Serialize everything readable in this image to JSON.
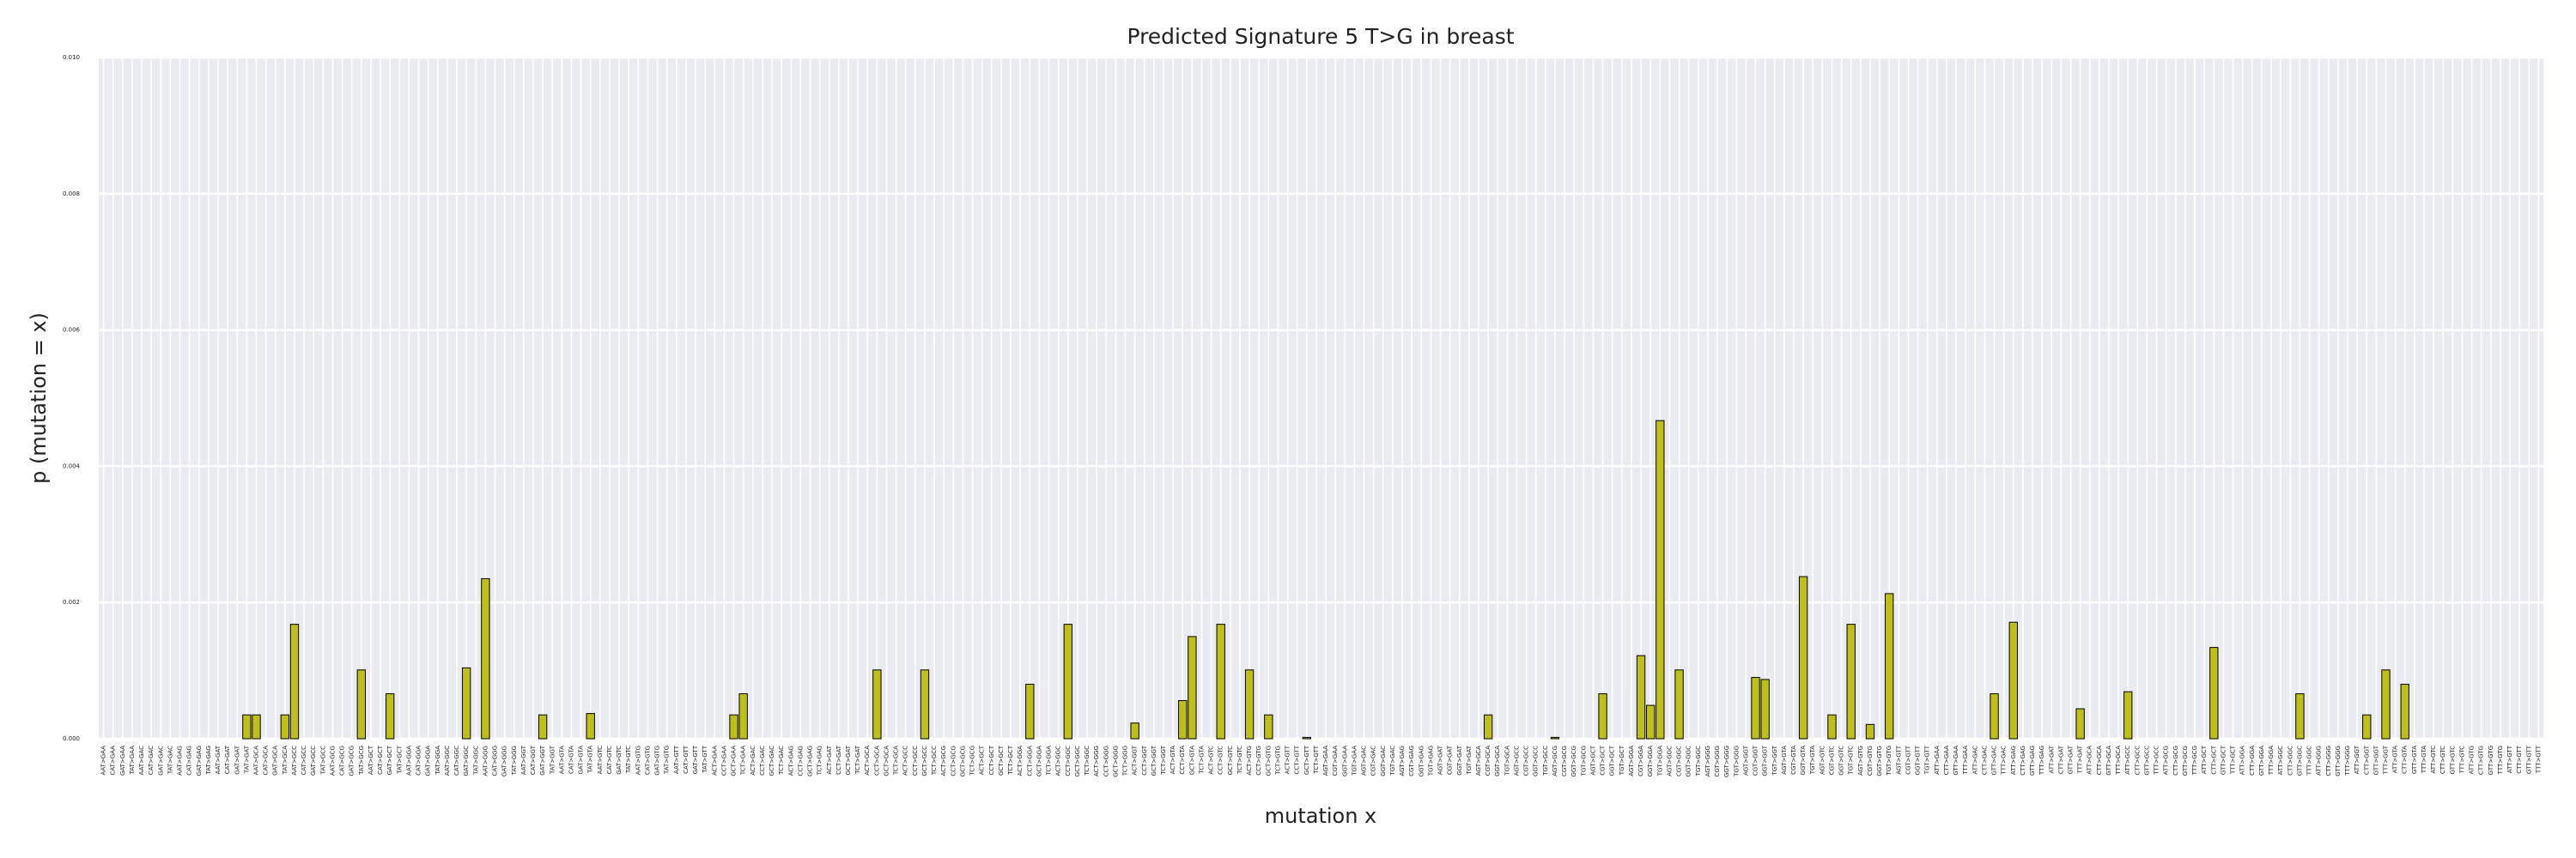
{
  "chart_data": {
    "type": "bar",
    "title": "Predicted Signature 5 T>G in breast",
    "xlabel": "mutation x",
    "ylabel": "p (mutation = x)",
    "color": "#bfbf1a",
    "edgecolor": "#000000",
    "grid": true,
    "ylim": [
      0,
      0.01
    ],
    "yticks": [
      {
        "value": 0,
        "label": "0.000"
      },
      {
        "value": 0.002,
        "label": "0.002"
      },
      {
        "value": 0.004,
        "label": "0.004"
      },
      {
        "value": 0.006,
        "label": "0.006"
      },
      {
        "value": 0.008,
        "label": "0.008"
      },
      {
        "value": 0.01,
        "label": "0.010"
      }
    ],
    "categories": [
      "AAT>GAA",
      "CAT>GAA",
      "GAT>GAA",
      "TAT>GAA",
      "AAT>GAC",
      "CAT>GAC",
      "GAT>GAC",
      "TAT>GAC",
      "AAT>GAG",
      "CAT>GAG",
      "GAT>GAG",
      "TAT>GAG",
      "AAT>GAT",
      "CAT>GAT",
      "GAT>GAT",
      "TAT>GAT",
      "AAT>GCA",
      "CAT>GCA",
      "GAT>GCA",
      "TAT>GCA",
      "AAT>GCC",
      "CAT>GCC",
      "GAT>GCC",
      "TAT>GCC",
      "AAT>GCG",
      "CAT>GCG",
      "GAT>GCG",
      "TAT>GCG",
      "AAT>GCT",
      "CAT>GCT",
      "GAT>GCT",
      "TAT>GCT",
      "AAT>GGA",
      "CAT>GGA",
      "GAT>GGA",
      "TAT>GGA",
      "AAT>GGC",
      "CAT>GGC",
      "GAT>GGC",
      "TAT>GGC",
      "AAT>GGG",
      "CAT>GGG",
      "GAT>GGG",
      "TAT>GGG",
      "AAT>GGT",
      "CAT>GGT",
      "GAT>GGT",
      "TAT>GGT",
      "AAT>GTA",
      "CAT>GTA",
      "GAT>GTA",
      "TAT>GTA",
      "AAT>GTC",
      "CAT>GTC",
      "GAT>GTC",
      "TAT>GTC",
      "AAT>GTG",
      "CAT>GTG",
      "GAT>GTG",
      "TAT>GTG",
      "AAT>GTT",
      "CAT>GTT",
      "GAT>GTT",
      "TAT>GTT",
      "ACT>GAA",
      "CCT>GAA",
      "GCT>GAA",
      "TCT>GAA",
      "ACT>GAC",
      "CCT>GAC",
      "GCT>GAC",
      "TCT>GAC",
      "ACT>GAG",
      "CCT>GAG",
      "GCT>GAG",
      "TCT>GAG",
      "ACT>GAT",
      "CCT>GAT",
      "GCT>GAT",
      "TCT>GAT",
      "ACT>GCA",
      "CCT>GCA",
      "GCT>GCA",
      "TCT>GCA",
      "ACT>GCC",
      "CCT>GCC",
      "GCT>GCC",
      "TCT>GCC",
      "ACT>GCG",
      "CCT>GCG",
      "GCT>GCG",
      "TCT>GCG",
      "ACT>GCT",
      "CCT>GCT",
      "GCT>GCT",
      "TCT>GCT",
      "ACT>GGA",
      "CCT>GGA",
      "GCT>GGA",
      "TCT>GGA",
      "ACT>GGC",
      "CCT>GGC",
      "GCT>GGC",
      "TCT>GGC",
      "ACT>GGG",
      "CCT>GGG",
      "GCT>GGG",
      "TCT>GGG",
      "ACT>GGT",
      "CCT>GGT",
      "GCT>GGT",
      "TCT>GGT",
      "ACT>GTA",
      "CCT>GTA",
      "GCT>GTA",
      "TCT>GTA",
      "ACT>GTC",
      "CCT>GTC",
      "GCT>GTC",
      "TCT>GTC",
      "ACT>GTG",
      "CCT>GTG",
      "GCT>GTG",
      "TCT>GTG",
      "ACT>GTT",
      "CCT>GTT",
      "GCT>GTT",
      "TCT>GTT",
      "AGT>GAA",
      "CGT>GAA",
      "GGT>GAA",
      "TGT>GAA",
      "AGT>GAC",
      "CGT>GAC",
      "GGT>GAC",
      "TGT>GAC",
      "AGT>GAG",
      "CGT>GAG",
      "GGT>GAG",
      "TGT>GAG",
      "AGT>GAT",
      "CGT>GAT",
      "GGT>GAT",
      "TGT>GAT",
      "AGT>GCA",
      "CGT>GCA",
      "GGT>GCA",
      "TGT>GCA",
      "AGT>GCC",
      "CGT>GCC",
      "GGT>GCC",
      "TGT>GCC",
      "AGT>GCG",
      "CGT>GCG",
      "GGT>GCG",
      "TGT>GCG",
      "AGT>GCT",
      "CGT>GCT",
      "GGT>GCT",
      "TGT>GCT",
      "AGT>GGA",
      "CGT>GGA",
      "GGT>GGA",
      "TGT>GGA",
      "AGT>GGC",
      "CGT>GGC",
      "GGT>GGC",
      "TGT>GGC",
      "AGT>GGG",
      "CGT>GGG",
      "GGT>GGG",
      "TGT>GGG",
      "AGT>GGT",
      "CGT>GGT",
      "GGT>GGT",
      "TGT>GGT",
      "AGT>GTA",
      "CGT>GTA",
      "GGT>GTA",
      "TGT>GTA",
      "AGT>GTC",
      "CGT>GTC",
      "GGT>GTC",
      "TGT>GTC",
      "AGT>GTG",
      "CGT>GTG",
      "GGT>GTG",
      "TGT>GTG",
      "AGT>GTT",
      "CGT>GTT",
      "GGT>GTT",
      "TGT>GTT",
      "ATT>GAA",
      "CTT>GAA",
      "GTT>GAA",
      "TTT>GAA",
      "ATT>GAC",
      "CTT>GAC",
      "GTT>GAC",
      "TTT>GAC",
      "ATT>GAG",
      "CTT>GAG",
      "GTT>GAG",
      "TTT>GAG",
      "ATT>GAT",
      "CTT>GAT",
      "GTT>GAT",
      "TTT>GAT",
      "ATT>GCA",
      "CTT>GCA",
      "GTT>GCA",
      "TTT>GCA",
      "ATT>GCC",
      "CTT>GCC",
      "GTT>GCC",
      "TTT>GCC",
      "ATT>GCG",
      "CTT>GCG",
      "GTT>GCG",
      "TTT>GCG",
      "ATT>GCT",
      "CTT>GCT",
      "GTT>GCT",
      "TTT>GCT",
      "ATT>GGA",
      "CTT>GGA",
      "GTT>GGA",
      "TTT>GGA",
      "ATT>GGC",
      "CTT>GGC",
      "GTT>GGC",
      "TTT>GGC",
      "ATT>GGG",
      "CTT>GGG",
      "GTT>GGG",
      "TTT>GGG",
      "ATT>GGT",
      "CTT>GGT",
      "GTT>GGT",
      "TTT>GGT",
      "ATT>GTA",
      "CTT>GTA",
      "GTT>GTA",
      "TTT>GTA",
      "ATT>GTC",
      "CTT>GTC",
      "GTT>GTC",
      "TTT>GTC",
      "ATT>GTG",
      "CTT>GTG",
      "GTT>GTG",
      "TTT>GTG",
      "ATT>GTT",
      "CTT>GTT",
      "GTT>GTT",
      "TTT>GTT"
    ],
    "values": [
      0,
      0,
      0,
      0,
      0,
      0,
      0,
      0,
      0,
      0,
      0,
      0,
      0,
      0,
      0,
      0.00035,
      0.00035,
      0,
      0,
      0.00035,
      0.00168,
      0,
      0,
      0,
      0,
      0,
      0,
      0.00101,
      0,
      0,
      0.00066,
      0,
      0,
      0,
      0,
      0,
      0,
      0,
      0.00104,
      0,
      0.00235,
      0,
      0,
      0,
      0,
      0,
      0.00035,
      0,
      0,
      0,
      0,
      0.00037,
      0,
      0,
      0,
      0,
      0,
      0,
      0,
      0,
      0,
      0,
      0,
      0,
      0,
      0,
      0.00035,
      0.00066,
      0,
      0,
      0,
      0,
      0,
      0,
      0,
      0,
      0,
      0,
      0,
      0,
      0,
      0.00101,
      0,
      0,
      0,
      0,
      0.00101,
      0,
      0,
      0,
      0,
      0,
      0,
      0,
      0,
      0,
      0,
      0.0008,
      0,
      0,
      0,
      0.00168,
      0,
      0,
      0,
      0,
      0,
      0,
      0.00023,
      0,
      0,
      0,
      0,
      0.00056,
      0.0015,
      0,
      0,
      0.00168,
      0,
      0,
      0.00101,
      0,
      0.00035,
      0,
      0,
      0,
      2e-05,
      0,
      0,
      0,
      0,
      0,
      0,
      0,
      0,
      0,
      0,
      0,
      0,
      0,
      0,
      0,
      0,
      0,
      0,
      0.00035,
      0,
      0,
      0,
      0,
      0,
      0,
      2e-05,
      0,
      0,
      0,
      0,
      0.00066,
      0,
      0,
      0,
      0.00122,
      0.00049,
      0.00467,
      0,
      0.00101,
      0,
      0,
      0,
      0,
      0,
      0,
      0,
      0.0009,
      0.00087,
      0,
      0,
      0,
      0.00238,
      0,
      0,
      0.00035,
      0,
      0.00168,
      0,
      0.00021,
      0,
      0.00213,
      0,
      0,
      0,
      0,
      0,
      0,
      0,
      0,
      0,
      0,
      0.00066,
      0,
      0.00171,
      0,
      0,
      0,
      0,
      0,
      0,
      0.00044,
      0,
      0,
      0,
      0,
      0.00069,
      0,
      0,
      0,
      0,
      0,
      0,
      0,
      0,
      0.00134,
      0,
      0,
      0,
      0,
      0,
      0,
      0,
      0,
      0.00066,
      0,
      0,
      0,
      0,
      0,
      0,
      0.00035,
      0,
      0.00101,
      0,
      0.0008,
      0,
      0,
      0,
      0,
      0,
      0,
      0,
      0,
      0,
      0,
      0,
      0,
      0,
      0
    ]
  }
}
